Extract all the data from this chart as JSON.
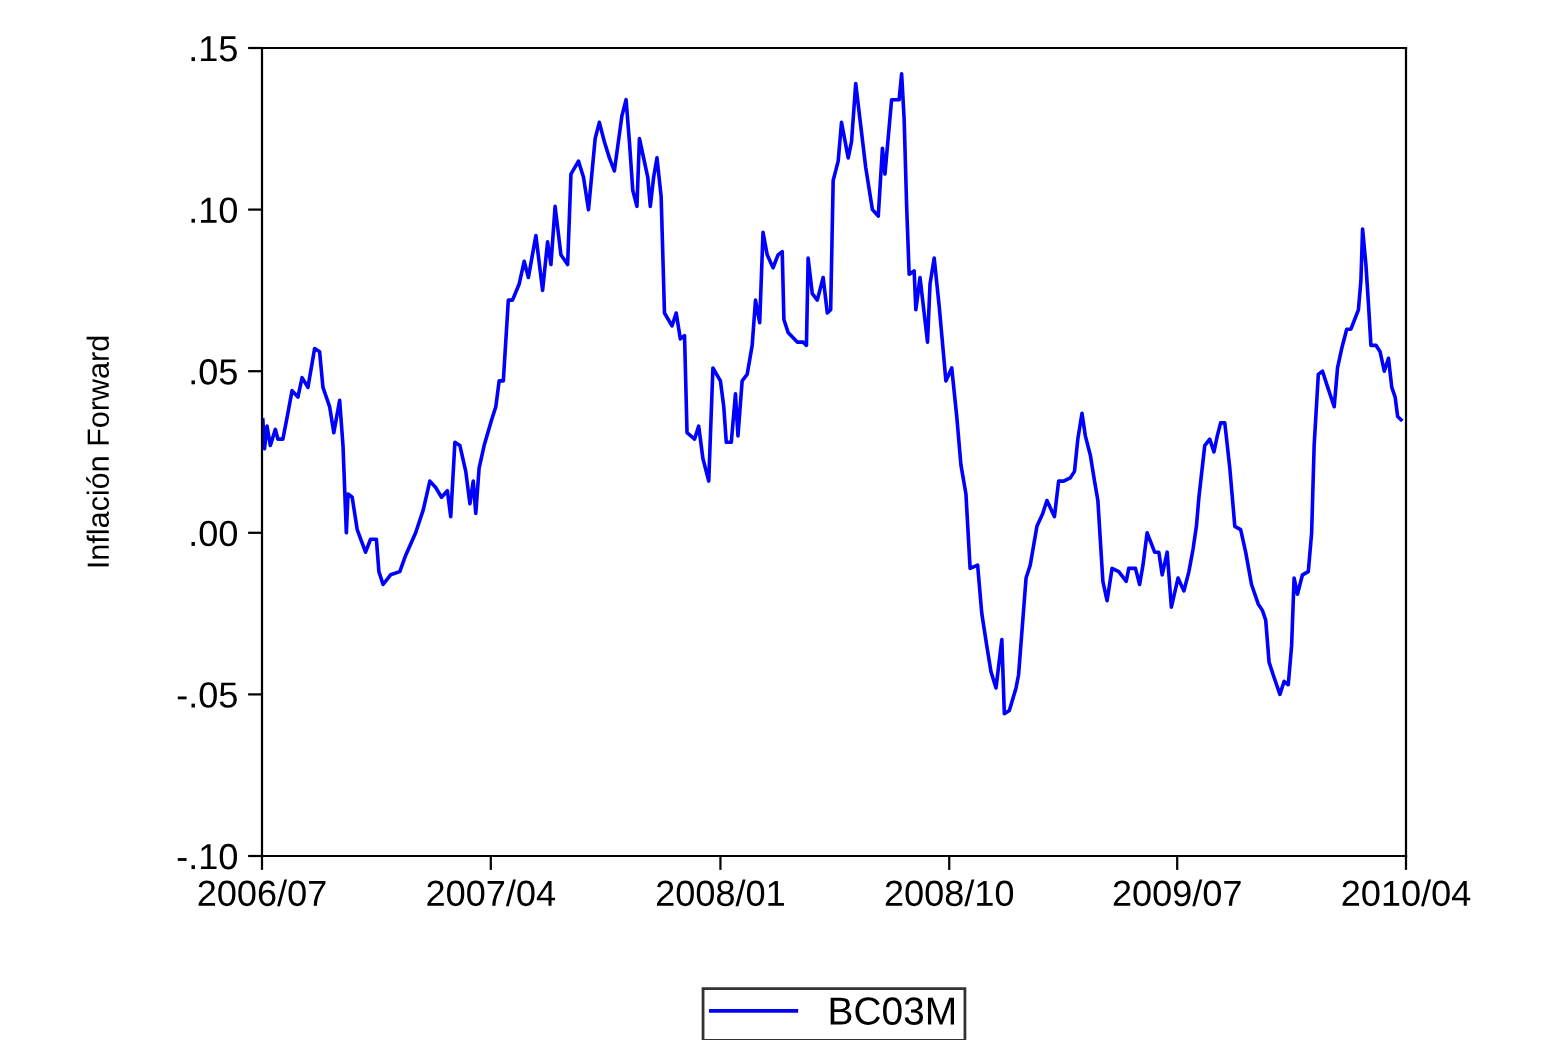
{
  "chart_data": {
    "type": "line",
    "ylabel": "Inflación Forward",
    "xlim": [
      "2006-07-01",
      "2010-04-01"
    ],
    "xticks": [
      {
        "value": "2006-07-01",
        "label": "2006/07"
      },
      {
        "value": "2007-04-01",
        "label": "2007/04"
      },
      {
        "value": "2008-01-01",
        "label": "2008/01"
      },
      {
        "value": "2008-10-01",
        "label": "2008/10"
      },
      {
        "value": "2009-07-01",
        "label": "2009/07"
      },
      {
        "value": "2010-04-01",
        "label": "2010/04"
      }
    ],
    "ylim": [
      -0.1,
      0.15
    ],
    "yticks": [
      {
        "value": -0.1,
        "label": "-.10"
      },
      {
        "value": -0.05,
        "label": "-.05"
      },
      {
        "value": 0.0,
        "label": ".00"
      },
      {
        "value": 0.05,
        "label": ".05"
      },
      {
        "value": 0.1,
        "label": ".10"
      },
      {
        "value": 0.15,
        "label": ".15"
      }
    ],
    "grid": false,
    "legend": "bottom",
    "line_style": "solid",
    "series": [
      {
        "name": "BC03M",
        "color": "#0000ff",
        "x": [
          "2006-07-02",
          "2006-07-04",
          "2006-07-07",
          "2006-07-11",
          "2006-07-17",
          "2006-07-20",
          "2006-07-26",
          "2006-08-01",
          "2006-08-06",
          "2006-08-13",
          "2006-08-18",
          "2006-08-25",
          "2006-09-02",
          "2006-09-08",
          "2006-09-12",
          "2006-09-20",
          "2006-09-25",
          "2006-10-02",
          "2006-10-06",
          "2006-10-10",
          "2006-10-12",
          "2006-10-17",
          "2006-10-23",
          "2006-11-02",
          "2006-11-08",
          "2006-11-15",
          "2006-11-18",
          "2006-11-23",
          "2006-12-02",
          "2006-12-13",
          "2006-12-20",
          "2007-01-01",
          "2007-01-10",
          "2007-01-18",
          "2007-01-25",
          "2007-02-01",
          "2007-02-08",
          "2007-02-12",
          "2007-02-17",
          "2007-02-23",
          "2007-03-02",
          "2007-03-07",
          "2007-03-11",
          "2007-03-14",
          "2007-03-18",
          "2007-03-24",
          "2007-04-02",
          "2007-04-07",
          "2007-04-11",
          "2007-04-16",
          "2007-04-22",
          "2007-04-27",
          "2007-05-05",
          "2007-05-11",
          "2007-05-16",
          "2007-05-25",
          "2007-06-02",
          "2007-06-08",
          "2007-06-12",
          "2007-06-17",
          "2007-06-24",
          "2007-07-02",
          "2007-07-06",
          "2007-07-15",
          "2007-07-21",
          "2007-07-27",
          "2007-08-04",
          "2007-08-09",
          "2007-08-15",
          "2007-08-21",
          "2007-08-27",
          "2007-09-05",
          "2007-09-10",
          "2007-09-14",
          "2007-09-18",
          "2007-09-23",
          "2007-09-26",
          "2007-10-06",
          "2007-10-09",
          "2007-10-13",
          "2007-10-17",
          "2007-10-22",
          "2007-10-26",
          "2007-11-04",
          "2007-11-09",
          "2007-11-14",
          "2007-11-19",
          "2007-11-22",
          "2007-12-01",
          "2007-12-06",
          "2007-12-11",
          "2007-12-18",
          "2007-12-23",
          "2008-01-01",
          "2008-01-05",
          "2008-01-08",
          "2008-01-14",
          "2008-01-19",
          "2008-01-22",
          "2008-01-27",
          "2008-02-02",
          "2008-02-08",
          "2008-02-12",
          "2008-02-17",
          "2008-02-21",
          "2008-02-26",
          "2008-03-04",
          "2008-03-10",
          "2008-03-15",
          "2008-03-17",
          "2008-03-22",
          "2008-04-02",
          "2008-04-09",
          "2008-04-13",
          "2008-04-15",
          "2008-04-20",
          "2008-04-26",
          "2008-05-03",
          "2008-05-08",
          "2008-05-12",
          "2008-05-15",
          "2008-05-21",
          "2008-05-25",
          "2008-06-02",
          "2008-06-06",
          "2008-06-11",
          "2008-06-17",
          "2008-06-23",
          "2008-07-01",
          "2008-07-08",
          "2008-07-13",
          "2008-07-16",
          "2008-07-24",
          "2008-08-02",
          "2008-08-05",
          "2008-08-08",
          "2008-08-11",
          "2008-08-14",
          "2008-08-20",
          "2008-08-22",
          "2008-08-27",
          "2008-09-05",
          "2008-09-08",
          "2008-09-13",
          "2008-09-19",
          "2008-09-27",
          "2008-10-04",
          "2008-10-10",
          "2008-10-15",
          "2008-10-21",
          "2008-10-26",
          "2008-11-04",
          "2008-11-09",
          "2008-11-15",
          "2008-11-20",
          "2008-11-26",
          "2008-12-03",
          "2008-12-06",
          "2008-12-12",
          "2008-12-20",
          "2008-12-23",
          "2009-01-01",
          "2009-01-06",
          "2009-01-14",
          "2009-01-21",
          "2009-01-26",
          "2009-02-04",
          "2009-02-09",
          "2009-02-15",
          "2009-02-23",
          "2009-02-28",
          "2009-03-04",
          "2009-03-09",
          "2009-03-13",
          "2009-03-19",
          "2009-03-24",
          "2009-03-28",
          "2009-04-03",
          "2009-04-08",
          "2009-04-14",
          "2009-04-22",
          "2009-05-01",
          "2009-05-04",
          "2009-05-12",
          "2009-05-17",
          "2009-05-21",
          "2009-05-26",
          "2009-06-04",
          "2009-06-09",
          "2009-06-13",
          "2009-06-19",
          "2009-06-24",
          "2009-07-02",
          "2009-07-09",
          "2009-07-15",
          "2009-07-20",
          "2009-07-24",
          "2009-07-27",
          "2009-08-03",
          "2009-08-09",
          "2009-08-14",
          "2009-08-18",
          "2009-08-22",
          "2009-08-27",
          "2009-09-02",
          "2009-09-08",
          "2009-09-15",
          "2009-09-21",
          "2009-09-28",
          "2009-10-06",
          "2009-10-11",
          "2009-10-15",
          "2009-10-19",
          "2009-10-24",
          "2009-11-01",
          "2009-11-06",
          "2009-11-11",
          "2009-11-15",
          "2009-11-18",
          "2009-11-22",
          "2009-11-28",
          "2009-12-05",
          "2009-12-09",
          "2009-12-12",
          "2009-12-17",
          "2009-12-22",
          "2009-12-27",
          "2010-01-05",
          "2010-01-09",
          "2010-01-14",
          "2010-01-20",
          "2010-01-25",
          "2010-02-03",
          "2010-02-06",
          "2010-02-08",
          "2010-02-12",
          "2010-02-15",
          "2010-02-18",
          "2010-02-24",
          "2010-03-01",
          "2010-03-06",
          "2010-03-11",
          "2010-03-15",
          "2010-03-19",
          "2010-03-22",
          "2010-03-26"
        ],
        "values": [
          0.035,
          0.026,
          0.033,
          0.027,
          0.032,
          0.029,
          0.029,
          0.037,
          0.044,
          0.042,
          0.048,
          0.045,
          0.057,
          0.056,
          0.045,
          0.039,
          0.031,
          0.041,
          0.027,
          0.0,
          0.012,
          0.011,
          0.001,
          -0.006,
          -0.002,
          -0.002,
          -0.012,
          -0.016,
          -0.013,
          -0.012,
          -0.007,
          0.0,
          0.007,
          0.016,
          0.014,
          0.011,
          0.013,
          0.005,
          0.028,
          0.027,
          0.019,
          0.009,
          0.016,
          0.006,
          0.02,
          0.027,
          0.035,
          0.039,
          0.047,
          0.047,
          0.072,
          0.072,
          0.077,
          0.084,
          0.079,
          0.092,
          0.075,
          0.09,
          0.083,
          0.101,
          0.086,
          0.083,
          0.111,
          0.115,
          0.11,
          0.1,
          0.122,
          0.127,
          0.121,
          0.116,
          0.112,
          0.129,
          0.134,
          0.121,
          0.106,
          0.101,
          0.122,
          0.11,
          0.101,
          0.11,
          0.116,
          0.104,
          0.068,
          0.064,
          0.068,
          0.06,
          0.061,
          0.031,
          0.029,
          0.033,
          0.023,
          0.016,
          0.051,
          0.047,
          0.039,
          0.028,
          0.028,
          0.043,
          0.03,
          0.047,
          0.049,
          0.058,
          0.072,
          0.065,
          0.093,
          0.086,
          0.082,
          0.086,
          0.087,
          0.066,
          0.062,
          0.059,
          0.059,
          0.058,
          0.085,
          0.074,
          0.072,
          0.079,
          0.068,
          0.069,
          0.109,
          0.115,
          0.127,
          0.116,
          0.121,
          0.139,
          0.126,
          0.113,
          0.1,
          0.098,
          0.119,
          0.111,
          0.134,
          0.134,
          0.142,
          0.128,
          0.101,
          0.08,
          0.081,
          0.069,
          0.079,
          0.059,
          0.077,
          0.085,
          0.07,
          0.047,
          0.051,
          0.036,
          0.021,
          0.012,
          -0.011,
          -0.01,
          -0.025,
          -0.035,
          -0.043,
          -0.048,
          -0.033,
          -0.056,
          -0.055,
          -0.048,
          -0.044,
          -0.014,
          -0.01,
          0.002,
          0.006,
          0.01,
          0.005,
          0.016,
          0.016,
          0.017,
          0.019,
          0.029,
          0.037,
          0.03,
          0.024,
          0.016,
          0.01,
          -0.015,
          -0.021,
          -0.011,
          -0.012,
          -0.015,
          -0.011,
          -0.011,
          -0.016,
          -0.01,
          0.0,
          -0.006,
          -0.006,
          -0.013,
          -0.006,
          -0.023,
          -0.014,
          -0.018,
          -0.012,
          -0.005,
          0.002,
          0.011,
          0.027,
          0.029,
          0.025,
          0.03,
          0.034,
          0.034,
          0.02,
          0.002,
          0.001,
          -0.006,
          -0.016,
          -0.022,
          -0.024,
          -0.027,
          -0.04,
          -0.044,
          -0.05,
          -0.046,
          -0.047,
          -0.035,
          -0.014,
          -0.019,
          -0.013,
          -0.012,
          0.0,
          0.027,
          0.049,
          0.05,
          0.046,
          0.039,
          0.051,
          0.057,
          0.063,
          0.063,
          0.069,
          0.078,
          0.094,
          0.083,
          0.071,
          0.058,
          0.058,
          0.056,
          0.05,
          0.054,
          0.045,
          0.042,
          0.036,
          0.035
        ]
      }
    ]
  }
}
